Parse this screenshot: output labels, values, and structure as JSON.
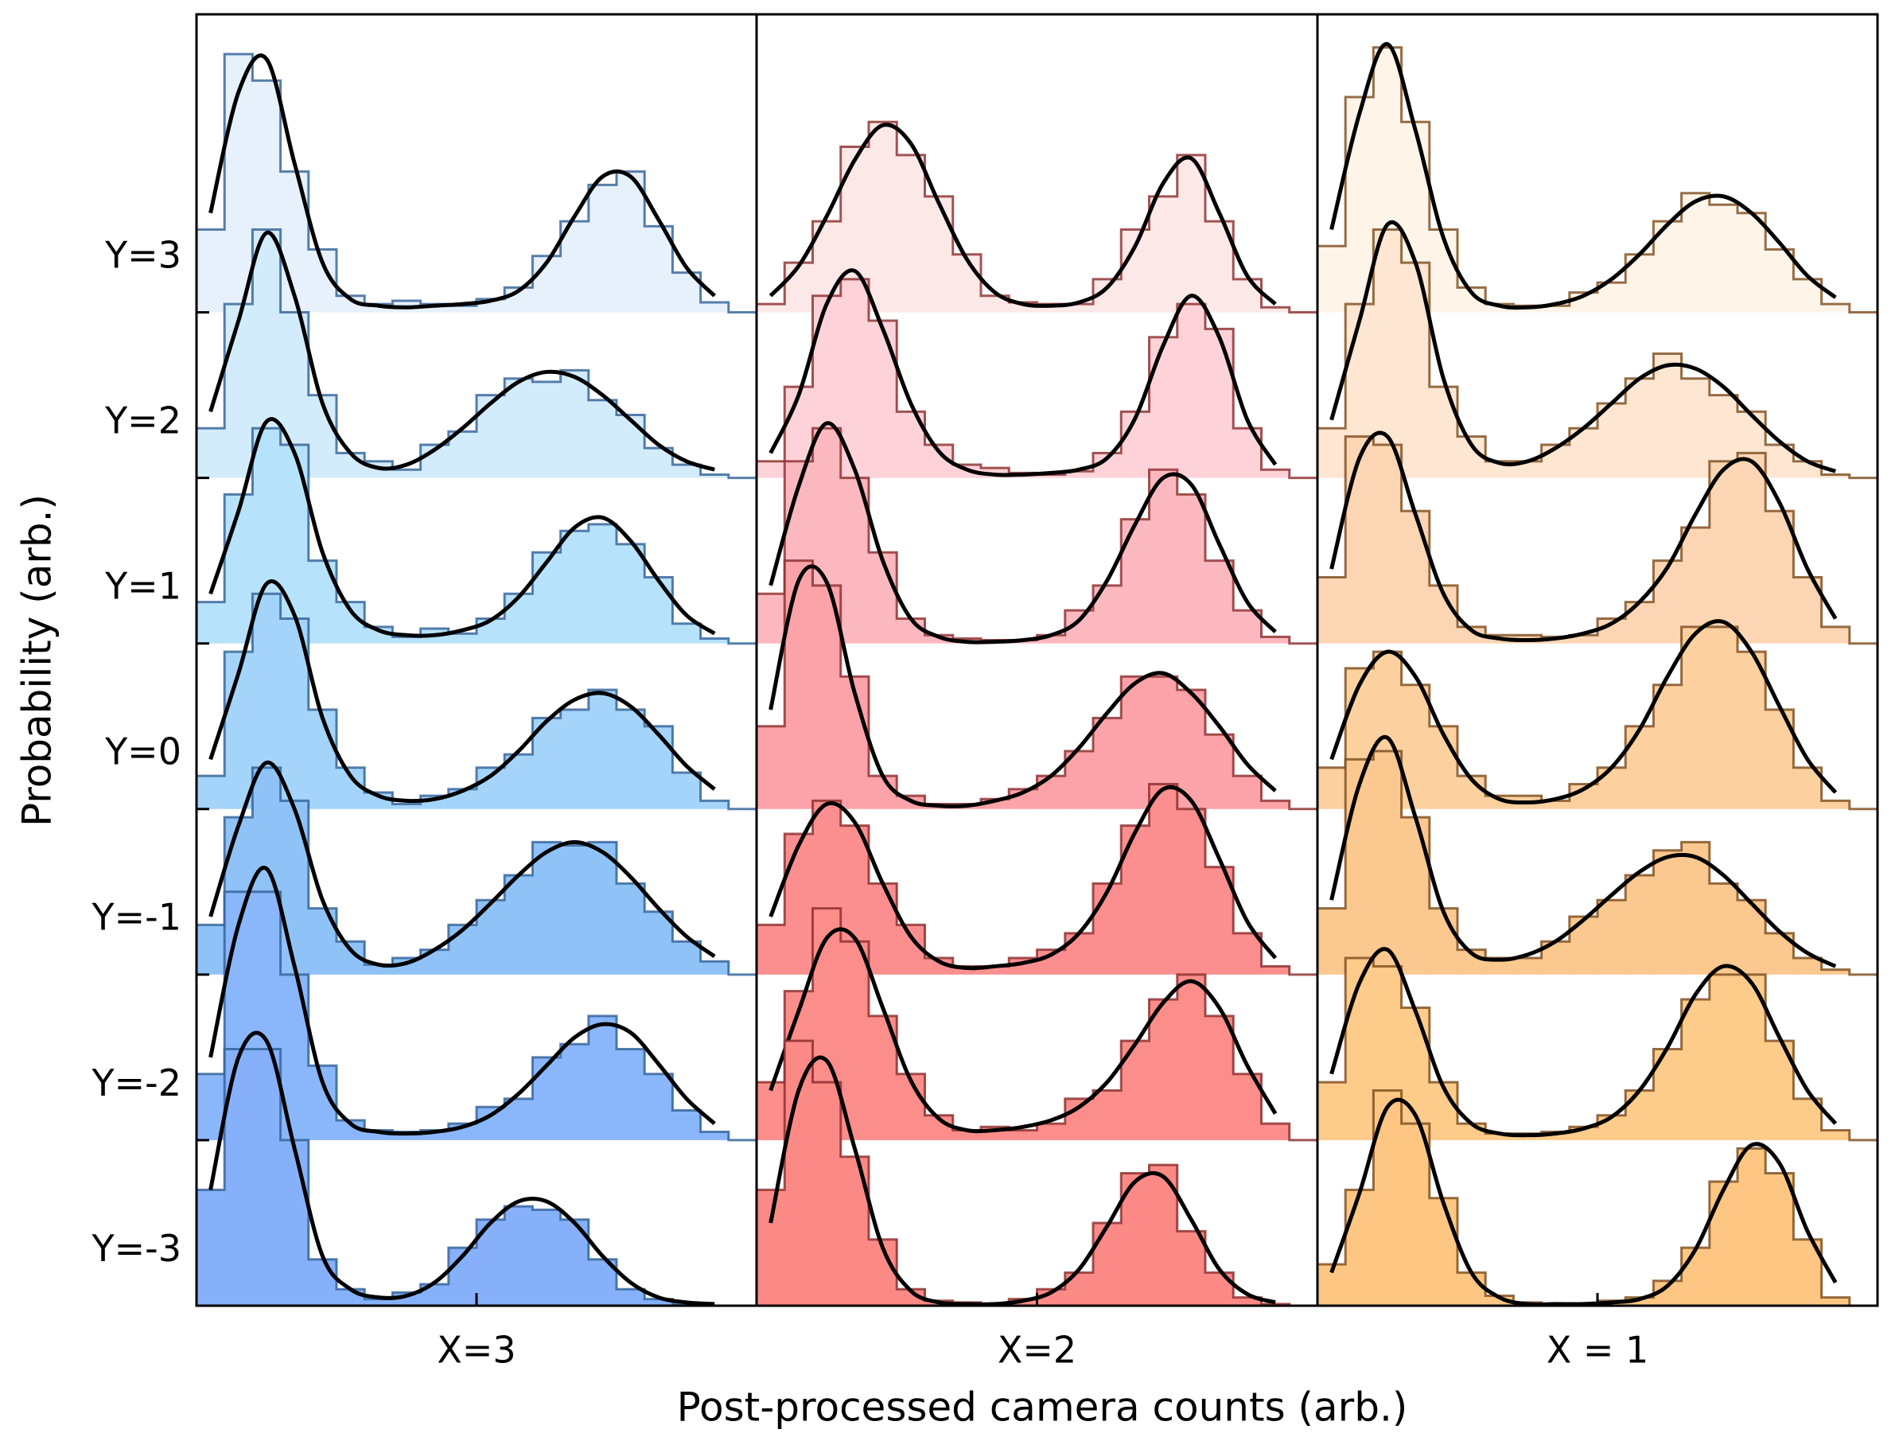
{
  "xlabel": "Post-processed camera counts (arb.)",
  "ylabel": "Probability (arb.)",
  "chart_data": [
    {
      "type": "histogram",
      "title": "X=3",
      "xlim": [
        0,
        1
      ],
      "ylim": [
        0,
        7.8
      ],
      "edge_color": "#2f5f96",
      "bins": [
        0,
        0.05,
        0.1,
        0.15,
        0.2,
        0.25,
        0.3,
        0.35,
        0.4,
        0.45,
        0.5,
        0.55,
        0.6,
        0.65,
        0.7,
        0.75,
        0.8,
        0.85,
        0.9,
        0.95
      ],
      "series": [
        {
          "name": "Y=3",
          "color": "#e6f1fc",
          "values": [
            0.5,
            1.56,
            1.4,
            0.85,
            0.38,
            0.1,
            0.05,
            0.07,
            0.05,
            0.04,
            0.08,
            0.15,
            0.34,
            0.55,
            0.77,
            0.85,
            0.52,
            0.24,
            0.06
          ],
          "fit": [
            0.6,
            1.33,
            1.53,
            0.9,
            0.3,
            0.08,
            0.04,
            0.03,
            0.04,
            0.05,
            0.07,
            0.13,
            0.3,
            0.58,
            0.82,
            0.82,
            0.56,
            0.27,
            0.1
          ]
        },
        {
          "name": "Y=2",
          "color": "#d3ecfc",
          "values": [
            0.3,
            1.05,
            1.5,
            1.0,
            0.5,
            0.15,
            0.1,
            0.05,
            0.2,
            0.28,
            0.5,
            0.6,
            0.58,
            0.65,
            0.47,
            0.38,
            0.18,
            0.08,
            0.02
          ],
          "fit": [
            0.4,
            0.95,
            1.48,
            1.1,
            0.45,
            0.15,
            0.06,
            0.08,
            0.17,
            0.3,
            0.45,
            0.58,
            0.64,
            0.61,
            0.5,
            0.35,
            0.2,
            0.1,
            0.05
          ]
        },
        {
          "name": "Y=1",
          "color": "#b7e2fb",
          "values": [
            0.25,
            0.9,
            1.3,
            1.2,
            0.5,
            0.25,
            0.1,
            0.04,
            0.09,
            0.06,
            0.15,
            0.3,
            0.55,
            0.68,
            0.72,
            0.6,
            0.4,
            0.12,
            0.03
          ],
          "fit": [
            0.3,
            0.8,
            1.34,
            1.15,
            0.55,
            0.2,
            0.08,
            0.05,
            0.05,
            0.08,
            0.14,
            0.28,
            0.49,
            0.7,
            0.76,
            0.62,
            0.38,
            0.17,
            0.06
          ]
        },
        {
          "name": "Y=0",
          "color": "#a4d4f9",
          "values": [
            0.2,
            0.95,
            1.3,
            1.15,
            0.6,
            0.25,
            0.1,
            0.03,
            0.08,
            0.12,
            0.25,
            0.33,
            0.55,
            0.6,
            0.72,
            0.6,
            0.5,
            0.22,
            0.05
          ],
          "fit": [
            0.3,
            0.82,
            1.36,
            1.17,
            0.55,
            0.2,
            0.08,
            0.05,
            0.06,
            0.11,
            0.2,
            0.35,
            0.53,
            0.66,
            0.7,
            0.62,
            0.45,
            0.26,
            0.12
          ]
        },
        {
          "name": "Y=-1",
          "color": "#8fc3f7",
          "values": [
            0.3,
            0.95,
            1.25,
            1.05,
            0.4,
            0.2,
            0.06,
            0.1,
            0.15,
            0.3,
            0.45,
            0.6,
            0.8,
            0.78,
            0.8,
            0.55,
            0.38,
            0.2,
            0.08
          ],
          "fit": [
            0.35,
            0.9,
            1.28,
            1.0,
            0.45,
            0.15,
            0.06,
            0.07,
            0.15,
            0.27,
            0.43,
            0.6,
            0.74,
            0.8,
            0.74,
            0.59,
            0.4,
            0.23,
            0.11
          ]
        },
        {
          "name": "Y=-2",
          "color": "#8ab7fb",
          "values": [
            0.4,
            1.5,
            1.5,
            1.0,
            0.45,
            0.12,
            0.06,
            0.05,
            0.06,
            0.1,
            0.2,
            0.25,
            0.5,
            0.58,
            0.75,
            0.55,
            0.4,
            0.18,
            0.05
          ],
          "fit": [
            0.5,
            1.3,
            1.64,
            1.05,
            0.35,
            0.1,
            0.05,
            0.04,
            0.05,
            0.08,
            0.15,
            0.28,
            0.45,
            0.62,
            0.7,
            0.65,
            0.46,
            0.25,
            0.1
          ]
        },
        {
          "name": "Y=-3",
          "color": "#86b1fa",
          "values": [
            0.7,
            1.55,
            1.55,
            1.0,
            0.28,
            0.1,
            0.04,
            0.08,
            0.13,
            0.35,
            0.52,
            0.6,
            0.58,
            0.52,
            0.28,
            0.1,
            0.04,
            0.01,
            0
          ],
          "fit": [
            0.7,
            1.5,
            1.6,
            0.95,
            0.3,
            0.1,
            0.05,
            0.06,
            0.14,
            0.3,
            0.5,
            0.63,
            0.63,
            0.5,
            0.3,
            0.14,
            0.05,
            0.02,
            0.01
          ]
        }
      ]
    },
    {
      "type": "histogram",
      "title": "X=2",
      "xlim": [
        0,
        1
      ],
      "ylim": [
        0,
        7.8
      ],
      "edge_color": "#8a2a2a",
      "bins": [
        0,
        0.05,
        0.1,
        0.15,
        0.2,
        0.25,
        0.3,
        0.35,
        0.4,
        0.45,
        0.5,
        0.55,
        0.6,
        0.65,
        0.7,
        0.75,
        0.8,
        0.85,
        0.9,
        0.95
      ],
      "series": [
        {
          "name": "Y=3",
          "color": "#fde8e8",
          "values": [
            0.05,
            0.3,
            0.55,
            1.0,
            1.15,
            0.95,
            0.7,
            0.35,
            0.1,
            0.06,
            0.05,
            0.05,
            0.2,
            0.5,
            0.7,
            0.95,
            0.55,
            0.2,
            0.03
          ],
          "fit": [
            0.1,
            0.28,
            0.58,
            0.92,
            1.13,
            1.02,
            0.66,
            0.32,
            0.12,
            0.05,
            0.04,
            0.06,
            0.15,
            0.4,
            0.78,
            0.93,
            0.6,
            0.22,
            0.05
          ]
        },
        {
          "name": "Y=2",
          "color": "#fdd3d9",
          "values": [
            0.1,
            0.55,
            1.1,
            1.2,
            0.95,
            0.4,
            0.2,
            0.08,
            0.06,
            0.03,
            0.02,
            0.04,
            0.15,
            0.4,
            0.85,
            1.05,
            0.9,
            0.3,
            0.05
          ],
          "fit": [
            0.15,
            0.5,
            1.05,
            1.25,
            0.9,
            0.45,
            0.16,
            0.05,
            0.02,
            0.02,
            0.03,
            0.05,
            0.12,
            0.36,
            0.8,
            1.1,
            0.85,
            0.35,
            0.08
          ]
        },
        {
          "name": "Y=1",
          "color": "#fcb8bf",
          "values": [
            0.3,
            1.1,
            1.3,
            1.0,
            0.55,
            0.15,
            0.05,
            0.03,
            0.02,
            0.02,
            0.05,
            0.2,
            0.35,
            0.75,
            1.05,
            0.9,
            0.5,
            0.2,
            0.04
          ],
          "fit": [
            0.35,
            0.95,
            1.33,
            1.05,
            0.5,
            0.15,
            0.04,
            0.01,
            0.01,
            0.02,
            0.05,
            0.14,
            0.38,
            0.72,
            1.0,
            0.96,
            0.6,
            0.25,
            0.07
          ]
        },
        {
          "name": "Y=0",
          "color": "#fba3a8",
          "values": [
            0.5,
            1.5,
            1.35,
            0.8,
            0.2,
            0.08,
            0.03,
            0.03,
            0.06,
            0.12,
            0.2,
            0.35,
            0.55,
            0.8,
            0.8,
            0.72,
            0.45,
            0.2,
            0.05
          ],
          "fit": [
            0.6,
            1.38,
            1.37,
            0.7,
            0.2,
            0.05,
            0.02,
            0.02,
            0.05,
            0.1,
            0.2,
            0.37,
            0.58,
            0.76,
            0.82,
            0.7,
            0.5,
            0.27,
            0.11
          ]
        },
        {
          "name": "Y=-1",
          "color": "#fb8f8f",
          "values": [
            0.3,
            0.85,
            1.05,
            0.9,
            0.55,
            0.3,
            0.1,
            0.05,
            0.05,
            0.1,
            0.15,
            0.25,
            0.55,
            0.9,
            1.15,
            1.0,
            0.65,
            0.25,
            0.05
          ],
          "fit": [
            0.35,
            0.78,
            1.03,
            0.92,
            0.55,
            0.23,
            0.08,
            0.04,
            0.05,
            0.07,
            0.12,
            0.25,
            0.5,
            0.86,
            1.12,
            1.05,
            0.7,
            0.32,
            0.1
          ]
        },
        {
          "name": "Y=-2",
          "color": "#fb8e8a",
          "values": [
            0.35,
            0.9,
            1.4,
            1.2,
            0.75,
            0.4,
            0.15,
            0.06,
            0.08,
            0.06,
            0.1,
            0.25,
            0.3,
            0.6,
            0.85,
            1.0,
            0.75,
            0.4,
            0.1
          ],
          "fit": [
            0.3,
            0.78,
            1.22,
            1.22,
            0.8,
            0.36,
            0.13,
            0.06,
            0.06,
            0.08,
            0.12,
            0.2,
            0.35,
            0.58,
            0.83,
            0.96,
            0.8,
            0.45,
            0.16
          ]
        },
        {
          "name": "Y=-3",
          "color": "#fb8a86",
          "values": [
            0.7,
            1.6,
            1.35,
            0.9,
            0.4,
            0.1,
            0.03,
            0.02,
            0.01,
            0.04,
            0.1,
            0.2,
            0.5,
            0.8,
            0.85,
            0.45,
            0.2,
            0.05,
            0.01
          ],
          "fit": [
            0.5,
            1.3,
            1.48,
            0.95,
            0.35,
            0.09,
            0.02,
            0.01,
            0.01,
            0.03,
            0.08,
            0.22,
            0.48,
            0.75,
            0.78,
            0.52,
            0.22,
            0.07,
            0.02
          ]
        }
      ]
    },
    {
      "type": "histogram",
      "title": "X = 1",
      "xlim": [
        0,
        1
      ],
      "ylim": [
        0,
        7.8
      ],
      "edge_color": "#7a4a1a",
      "bins": [
        0,
        0.05,
        0.1,
        0.15,
        0.2,
        0.25,
        0.3,
        0.35,
        0.4,
        0.45,
        0.5,
        0.55,
        0.6,
        0.65,
        0.7,
        0.75,
        0.8,
        0.85,
        0.9,
        0.95
      ],
      "series": [
        {
          "name": "Y=3",
          "color": "#fef4e8",
          "values": [
            0.4,
            1.3,
            1.6,
            1.15,
            0.5,
            0.15,
            0.05,
            0.04,
            0.04,
            0.12,
            0.18,
            0.35,
            0.55,
            0.72,
            0.65,
            0.6,
            0.38,
            0.2,
            0.05
          ],
          "fit": [
            0.5,
            1.2,
            1.62,
            1.1,
            0.45,
            0.12,
            0.04,
            0.03,
            0.05,
            0.1,
            0.2,
            0.35,
            0.53,
            0.67,
            0.7,
            0.6,
            0.42,
            0.22,
            0.09
          ]
        },
        {
          "name": "Y=2",
          "color": "#fde6d2",
          "values": [
            0.3,
            1.05,
            1.5,
            1.3,
            0.55,
            0.25,
            0.1,
            0.1,
            0.2,
            0.3,
            0.45,
            0.6,
            0.75,
            0.6,
            0.5,
            0.4,
            0.2,
            0.1,
            0.02
          ],
          "fit": [
            0.35,
            0.95,
            1.53,
            1.3,
            0.6,
            0.2,
            0.09,
            0.1,
            0.18,
            0.3,
            0.45,
            0.6,
            0.68,
            0.66,
            0.55,
            0.38,
            0.22,
            0.1,
            0.04
          ]
        },
        {
          "name": "Y=1",
          "color": "#fcd6b4",
          "values": [
            0.4,
            1.25,
            1.2,
            0.8,
            0.35,
            0.1,
            0.05,
            0.05,
            0.04,
            0.05,
            0.15,
            0.25,
            0.5,
            0.7,
            1.1,
            1.15,
            0.8,
            0.4,
            0.1
          ],
          "fit": [
            0.45,
            1.12,
            1.25,
            0.78,
            0.3,
            0.08,
            0.03,
            0.02,
            0.03,
            0.06,
            0.12,
            0.25,
            0.46,
            0.78,
            1.05,
            1.1,
            0.85,
            0.45,
            0.15
          ]
        },
        {
          "name": "Y=0",
          "color": "#fcd19f",
          "values": [
            0.25,
            0.85,
            0.95,
            0.75,
            0.5,
            0.2,
            0.08,
            0.08,
            0.05,
            0.15,
            0.25,
            0.5,
            0.75,
            1.1,
            1.1,
            0.95,
            0.6,
            0.25,
            0.05
          ],
          "fit": [
            0.3,
            0.75,
            0.95,
            0.8,
            0.45,
            0.18,
            0.06,
            0.04,
            0.06,
            0.12,
            0.25,
            0.48,
            0.8,
            1.06,
            1.13,
            0.95,
            0.62,
            0.3,
            0.1
          ]
        },
        {
          "name": "Y=-1",
          "color": "#fbc88f",
          "values": [
            0.4,
            1.3,
            1.35,
            0.95,
            0.4,
            0.15,
            0.1,
            0.1,
            0.2,
            0.35,
            0.45,
            0.6,
            0.75,
            0.8,
            0.55,
            0.45,
            0.25,
            0.1,
            0.03
          ],
          "fit": [
            0.45,
            1.15,
            1.43,
            0.95,
            0.38,
            0.13,
            0.09,
            0.12,
            0.2,
            0.33,
            0.48,
            0.62,
            0.71,
            0.71,
            0.6,
            0.43,
            0.26,
            0.13,
            0.05
          ]
        },
        {
          "name": "Y=-2",
          "color": "#fdcb8a",
          "values": [
            0.35,
            1.1,
            1.05,
            0.8,
            0.35,
            0.1,
            0.04,
            0.04,
            0.05,
            0.08,
            0.15,
            0.3,
            0.55,
            0.85,
            1.0,
            1.0,
            0.6,
            0.25,
            0.06
          ],
          "fit": [
            0.4,
            0.95,
            1.15,
            0.78,
            0.32,
            0.1,
            0.04,
            0.03,
            0.04,
            0.07,
            0.14,
            0.3,
            0.56,
            0.88,
            1.05,
            0.95,
            0.62,
            0.3,
            0.1
          ]
        },
        {
          "name": "Y=-3",
          "color": "#fdc783",
          "values": [
            0.25,
            0.7,
            1.3,
            1.1,
            0.65,
            0.2,
            0.06,
            0.02,
            0.01,
            0.01,
            0.03,
            0.05,
            0.15,
            0.35,
            0.75,
            0.95,
            0.8,
            0.4,
            0.05
          ],
          "fit": [
            0.2,
            0.68,
            1.2,
            1.15,
            0.62,
            0.2,
            0.05,
            0.01,
            0.01,
            0.01,
            0.02,
            0.04,
            0.12,
            0.34,
            0.7,
            0.97,
            0.86,
            0.45,
            0.14
          ]
        }
      ]
    }
  ]
}
